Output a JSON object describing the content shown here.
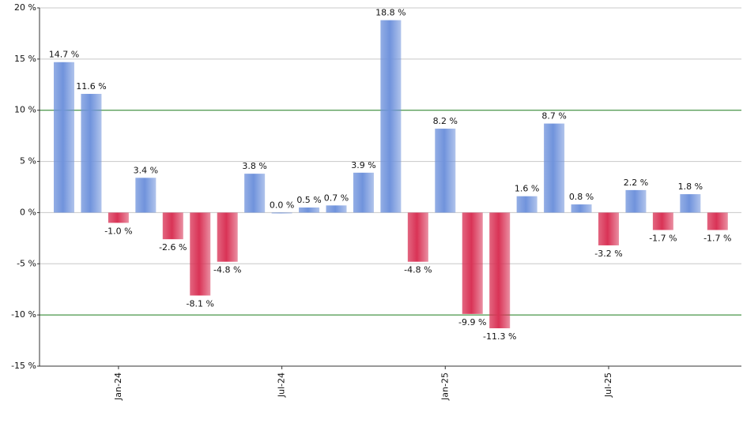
{
  "chart_data": {
    "type": "bar",
    "categories": [
      null,
      null,
      "Jan-24",
      null,
      null,
      null,
      null,
      null,
      "Jul-24",
      null,
      null,
      null,
      null,
      null,
      "Jan-25",
      null,
      null,
      null,
      null,
      null,
      "Jul-25",
      null,
      null,
      null,
      null
    ],
    "values": [
      14.7,
      11.6,
      -1.0,
      3.4,
      -2.6,
      -8.1,
      -4.8,
      3.8,
      0.0,
      0.5,
      0.7,
      3.9,
      18.8,
      -4.8,
      8.2,
      -9.9,
      -11.3,
      1.6,
      8.7,
      0.8,
      -3.2,
      2.2,
      -1.7,
      1.8,
      -1.7
    ],
    "value_labels": [
      "14.7 %",
      "11.6 %",
      "-1.0 %",
      "3.4 %",
      "-2.6 %",
      "-8.1 %",
      "-4.8 %",
      "3.8 %",
      "0.0 %",
      "0.5 %",
      "0.7 %",
      "3.9 %",
      "18.8 %",
      "-4.8 %",
      "8.2 %",
      "-9.9 %",
      "-11.3 %",
      "1.6 %",
      "8.7 %",
      "0.8 %",
      "-3.2 %",
      "2.2 %",
      "-1.7 %",
      "1.8 %",
      "-1.7 %"
    ],
    "positive_color": "#7093dc",
    "negative_color": "#d93356",
    "ylim": [
      -15,
      20
    ],
    "yticks": [
      {
        "value": -15,
        "label": "-15 %"
      },
      {
        "value": -10,
        "label": "-10 %"
      },
      {
        "value": -5,
        "label": "-5 %"
      },
      {
        "value": 0,
        "label": "0 %"
      },
      {
        "value": 5,
        "label": "5 %"
      },
      {
        "value": 10,
        "label": "10 %"
      },
      {
        "value": 15,
        "label": "15 %"
      },
      {
        "value": 20,
        "label": "20 %"
      }
    ],
    "grid": true,
    "reference_lines": [
      -10,
      10
    ],
    "reference_color": "#1a7a1a"
  }
}
